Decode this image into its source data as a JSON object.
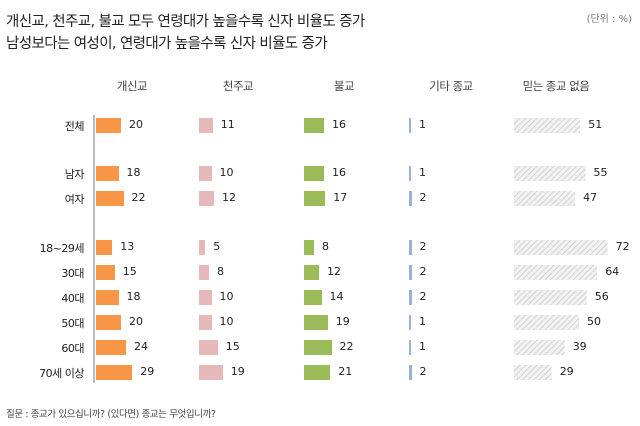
{
  "chart_data": {
    "type": "bar",
    "title": "개신교, 천주교, 불교 모두 연령대가 높을수록 신자 비율도 증가",
    "subtitle": "남성보다는 여성이, 연령대가 높을수록 신자 비율도 증가",
    "unit": "(단위 : %)",
    "note": "질문 : 종교가 있으십니까? (있다면) 종교는 무엇입니까?",
    "categories": [
      "전체",
      "남자",
      "여자",
      "18~29세",
      "30대",
      "40대",
      "50대",
      "60대",
      "70세 이상"
    ],
    "series": [
      {
        "name": "개신교",
        "color": "#f79646",
        "values": [
          20,
          18,
          22,
          13,
          15,
          18,
          20,
          24,
          29
        ]
      },
      {
        "name": "천주교",
        "color": "#e6b9b8",
        "values": [
          11,
          10,
          12,
          5,
          8,
          10,
          10,
          15,
          19
        ]
      },
      {
        "name": "불교",
        "color": "#9bbb59",
        "values": [
          16,
          16,
          17,
          8,
          12,
          14,
          19,
          22,
          21
        ]
      },
      {
        "name": "기타 종교",
        "color": "#95b3d7",
        "values": [
          1,
          1,
          2,
          2,
          2,
          2,
          1,
          1,
          2
        ]
      },
      {
        "name": "믿는 종교 없음",
        "color": "hatch-gray",
        "values": [
          51,
          55,
          47,
          72,
          64,
          56,
          50,
          39,
          29
        ]
      }
    ]
  }
}
